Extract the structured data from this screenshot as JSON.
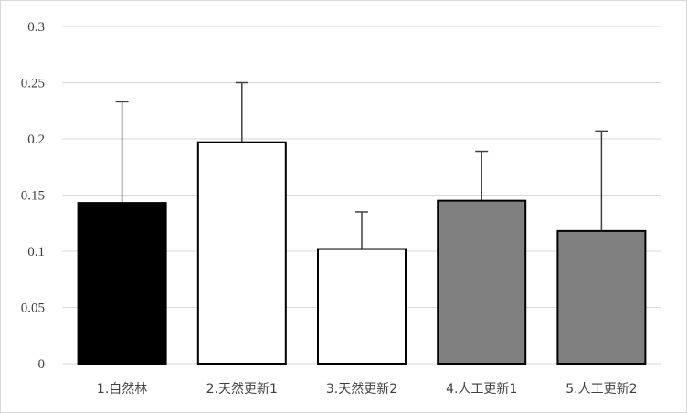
{
  "chart_data": {
    "type": "bar",
    "categories": [
      "1.自然林",
      "2.天然更新1",
      "3.天然更新2",
      "4.人工更新1",
      "5.人工更新2"
    ],
    "values": [
      0.143,
      0.197,
      0.102,
      0.145,
      0.118
    ],
    "error_upper": [
      0.233,
      0.25,
      0.135,
      0.189,
      0.207
    ],
    "bar_fills": [
      "#000000",
      "#ffffff",
      "#ffffff",
      "#808080",
      "#808080"
    ],
    "bar_stroke": "#000000",
    "error_color": "#404040",
    "grid_color": "#d9d9d9",
    "yticks": [
      "0",
      "0.05",
      "0.1",
      "0.15",
      "0.2",
      "0.25",
      "0.3"
    ],
    "ylim": [
      0,
      0.3
    ],
    "grid": true,
    "legend": "none",
    "title": "",
    "xlabel": "",
    "ylabel": ""
  }
}
